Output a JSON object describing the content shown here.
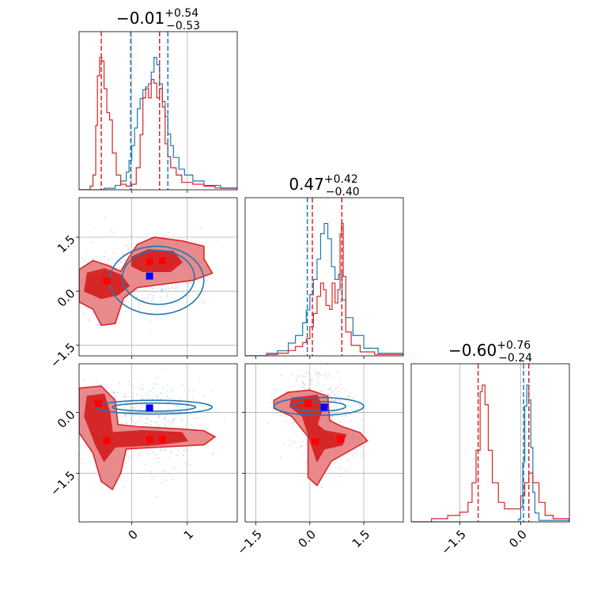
{
  "chart_data": {
    "type": "corner",
    "colors": {
      "red": "#d62728",
      "blue": "#1f77b4",
      "red_fill": "#e88a8c",
      "red_dark": "#d62728",
      "red_scatter": "#f4a6b0",
      "blue_scatter": "#a8cfe8"
    },
    "params": [
      {
        "index": 0,
        "range": [
          -0.95,
          1.9
        ],
        "title": {
          "median": "−0.01",
          "plus": "+0.54",
          "minus": "−0.53"
        },
        "ticks": [
          0,
          1
        ],
        "ticklabels": [
          "0",
          "1"
        ]
      },
      {
        "index": 1,
        "range": [
          -1.8,
          2.6
        ],
        "title": {
          "median": "0.47",
          "plus": "+0.42",
          "minus": "−0.40"
        },
        "ticks": [
          -1.5,
          0.0,
          1.5
        ],
        "ticklabels": [
          "−1.5",
          "0.0",
          "1.5"
        ]
      },
      {
        "index": 2,
        "range": [
          -2.7,
          1.2
        ],
        "title": {
          "median": "−0.60",
          "plus": "+0.76",
          "minus": "−0.24"
        },
        "ticks": [
          -1.5,
          0.0
        ],
        "ticklabels": [
          "−1.5",
          "0.0"
        ]
      }
    ],
    "truth_lines": [
      0.0,
      0.0,
      0.0
    ],
    "diagonal": [
      {
        "param": 0,
        "red_quantiles": [
          -0.55,
          0.5
        ],
        "blue_quantiles": [
          -0.02,
          0.65
        ],
        "red_hist": [
          [
            -0.95,
            0
          ],
          [
            -0.75,
            0.02
          ],
          [
            -0.7,
            0.08
          ],
          [
            -0.65,
            0.35
          ],
          [
            -0.62,
            0.62
          ],
          [
            -0.58,
            0.72
          ],
          [
            -0.54,
            0.7
          ],
          [
            -0.5,
            0.55
          ],
          [
            -0.45,
            0.42
          ],
          [
            -0.4,
            0.38
          ],
          [
            -0.35,
            0.2
          ],
          [
            -0.28,
            0.08
          ],
          [
            -0.2,
            0.03
          ],
          [
            -0.1,
            0.02
          ],
          [
            0.0,
            0.03
          ],
          [
            0.08,
            0.12
          ],
          [
            0.15,
            0.3
          ],
          [
            0.2,
            0.5
          ],
          [
            0.25,
            0.55
          ],
          [
            0.3,
            0.5
          ],
          [
            0.35,
            0.6
          ],
          [
            0.4,
            0.58
          ],
          [
            0.45,
            0.5
          ],
          [
            0.5,
            0.55
          ],
          [
            0.55,
            0.45
          ],
          [
            0.6,
            0.25
          ],
          [
            0.65,
            0.18
          ],
          [
            0.7,
            0.12
          ],
          [
            0.8,
            0.08
          ],
          [
            0.9,
            0.04
          ],
          [
            1.1,
            0.03
          ],
          [
            1.3,
            0.02
          ],
          [
            1.5,
            0.01
          ],
          [
            1.9,
            0
          ]
        ],
        "blue_hist": [
          [
            -0.95,
            0
          ],
          [
            -0.5,
            0.01
          ],
          [
            -0.3,
            0.03
          ],
          [
            -0.2,
            0.06
          ],
          [
            -0.1,
            0.12
          ],
          [
            -0.05,
            0.2
          ],
          [
            0.0,
            0.3
          ],
          [
            0.05,
            0.42
          ],
          [
            0.1,
            0.55
          ],
          [
            0.15,
            0.62
          ],
          [
            0.2,
            0.68
          ],
          [
            0.25,
            0.7
          ],
          [
            0.3,
            0.72
          ],
          [
            0.35,
            0.8
          ],
          [
            0.4,
            0.9
          ],
          [
            0.45,
            0.85
          ],
          [
            0.5,
            0.72
          ],
          [
            0.55,
            0.6
          ],
          [
            0.6,
            0.5
          ],
          [
            0.65,
            0.38
          ],
          [
            0.7,
            0.3
          ],
          [
            0.75,
            0.22
          ],
          [
            0.85,
            0.14
          ],
          [
            0.95,
            0.1
          ],
          [
            1.1,
            0.06
          ],
          [
            1.3,
            0.03
          ],
          [
            1.6,
            0.01
          ],
          [
            1.9,
            0
          ]
        ]
      },
      {
        "param": 1,
        "red_quantiles": [
          0.07,
          0.89
        ],
        "blue_quantiles": [
          -0.07,
          0.89
        ],
        "red_hist": [
          [
            -1.8,
            0
          ],
          [
            -1.2,
            0.01
          ],
          [
            -0.9,
            0.02
          ],
          [
            -0.6,
            0.04
          ],
          [
            -0.4,
            0.07
          ],
          [
            -0.2,
            0.1
          ],
          [
            -0.1,
            0.13
          ],
          [
            0.0,
            0.22
          ],
          [
            0.1,
            0.32
          ],
          [
            0.2,
            0.45
          ],
          [
            0.3,
            0.55
          ],
          [
            0.38,
            0.5
          ],
          [
            0.45,
            0.38
          ],
          [
            0.55,
            0.35
          ],
          [
            0.62,
            0.55
          ],
          [
            0.7,
            0.4
          ],
          [
            0.78,
            0.5
          ],
          [
            0.84,
            0.92
          ],
          [
            0.88,
            1.0
          ],
          [
            0.93,
            0.6
          ],
          [
            1.0,
            0.18
          ],
          [
            1.15,
            0.08
          ],
          [
            1.4,
            0.03
          ],
          [
            1.8,
            0.01
          ],
          [
            2.6,
            0
          ]
        ],
        "blue_hist": [
          [
            -1.8,
            0
          ],
          [
            -1.2,
            0.01
          ],
          [
            -0.9,
            0.02
          ],
          [
            -0.6,
            0.05
          ],
          [
            -0.4,
            0.08
          ],
          [
            -0.2,
            0.13
          ],
          [
            -0.1,
            0.18
          ],
          [
            0.0,
            0.24
          ],
          [
            0.1,
            0.3
          ],
          [
            0.2,
            0.38
          ],
          [
            0.3,
            0.48
          ],
          [
            0.4,
            0.52
          ],
          [
            0.5,
            0.46
          ],
          [
            0.6,
            0.35
          ],
          [
            0.7,
            0.3
          ],
          [
            0.8,
            0.32
          ],
          [
            0.9,
            0.22
          ],
          [
            1.0,
            0.15
          ],
          [
            1.2,
            0.08
          ],
          [
            1.5,
            0.03
          ],
          [
            1.9,
            0.01
          ],
          [
            2.6,
            0
          ]
        ]
      },
      {
        "param": 2,
        "red_quantiles": [
          -1.05,
          0.2
        ],
        "blue_quantiles": [
          0.07,
          0.2
        ],
        "red_hist": [
          [
            -2.7,
            0
          ],
          [
            -2.2,
            0.01
          ],
          [
            -1.8,
            0.02
          ],
          [
            -1.5,
            0.03
          ],
          [
            -1.3,
            0.06
          ],
          [
            -1.2,
            0.12
          ],
          [
            -1.1,
            0.22
          ],
          [
            -1.0,
            0.4
          ],
          [
            -0.95,
            0.42
          ],
          [
            -0.88,
            0.36
          ],
          [
            -0.8,
            0.22
          ],
          [
            -0.7,
            0.12
          ],
          [
            -0.55,
            0.06
          ],
          [
            -0.4,
            0.04
          ],
          [
            -0.2,
            0.04
          ],
          [
            0.0,
            0.08
          ],
          [
            0.1,
            0.12
          ],
          [
            0.2,
            0.15
          ],
          [
            0.3,
            0.12
          ],
          [
            0.45,
            0.06
          ],
          [
            0.6,
            0.02
          ],
          [
            0.8,
            0.01
          ],
          [
            1.2,
            0
          ]
        ],
        "blue_hist": [
          [
            -2.7,
            0
          ],
          [
            -0.2,
            0
          ],
          [
            -0.05,
            0.02
          ],
          [
            0.0,
            0.1
          ],
          [
            0.05,
            0.4
          ],
          [
            0.1,
            0.78
          ],
          [
            0.15,
            0.92
          ],
          [
            0.2,
            0.82
          ],
          [
            0.25,
            0.5
          ],
          [
            0.3,
            0.2
          ],
          [
            0.35,
            0.06
          ],
          [
            0.45,
            0.01
          ],
          [
            1.2,
            0
          ]
        ]
      }
    ],
    "pairs": [
      {
        "x": 0,
        "y": 1,
        "red_points": [
          [
            0.32,
            0.82
          ],
          [
            0.55,
            0.84
          ],
          [
            -0.45,
            0.28
          ]
        ],
        "blue_points": [
          [
            0.32,
            0.42
          ]
        ],
        "red_centers": [
          [
            -0.45,
            0.25
          ],
          [
            0.45,
            0.75
          ]
        ],
        "blue_center": [
          0.45,
          0.3
        ]
      },
      {
        "x": 0,
        "y": 2,
        "red_points": [
          [
            -0.6,
            0.22
          ],
          [
            -0.45,
            -0.7
          ],
          [
            0.32,
            -0.67
          ],
          [
            0.55,
            -0.66
          ]
        ],
        "blue_points": [
          [
            0.32,
            0.11
          ]
        ],
        "red_centers": [
          [
            -0.45,
            -0.2
          ],
          [
            0.45,
            -0.65
          ]
        ],
        "blue_center": [
          0.3,
          0.15
        ]
      },
      {
        "x": 1,
        "y": 2,
        "red_points": [
          [
            -0.05,
            0.22
          ],
          [
            0.15,
            -0.72
          ],
          [
            0.85,
            -0.66
          ]
        ],
        "blue_points": [
          [
            0.4,
            0.13
          ]
        ],
        "red_centers": [
          [
            0.0,
            0.25
          ],
          [
            0.5,
            -0.6
          ]
        ],
        "blue_center": [
          0.1,
          0.2
        ]
      }
    ]
  }
}
